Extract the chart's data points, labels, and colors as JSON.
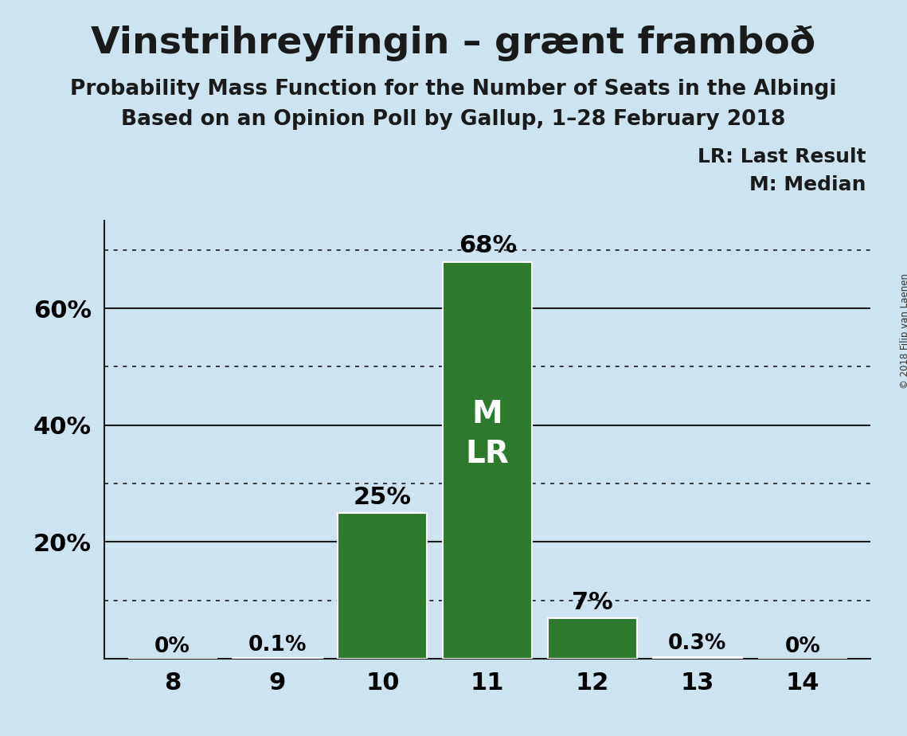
{
  "title": "Vinstrihreyfingin – grænt framboð",
  "subtitle1": "Probability Mass Function for the Number of Seats in the Albingi",
  "subtitle2": "Based on an Opinion Poll by Gallup, 1–28 February 2018",
  "copyright": "© 2018 Filip van Laenen",
  "seats": [
    8,
    9,
    10,
    11,
    12,
    13,
    14
  ],
  "probabilities": [
    0.0,
    0.001,
    0.25,
    0.68,
    0.07,
    0.003,
    0.0
  ],
  "prob_labels": [
    "0%",
    "0.1%",
    "25%",
    "68%",
    "7%",
    "0.3%",
    "0%"
  ],
  "bar_color": "#2d7a2d",
  "median_seat": 11,
  "last_result_seat": 11,
  "background_color": "#cde4f0",
  "ylim": [
    0,
    0.75
  ],
  "shown_yticks": [
    0.2,
    0.4,
    0.6
  ],
  "shown_ytick_labels": [
    "20%",
    "40%",
    "60%"
  ],
  "solid_yticks": [
    0.2,
    0.4,
    0.6
  ],
  "dotted_yticks": [
    0.1,
    0.3,
    0.5,
    0.7
  ],
  "annotation_lr": "LR: Last Result",
  "annotation_m": "M: Median",
  "label_inside_bar": "M\nLR",
  "label_inside_seat": 11,
  "grid_color": "#1a1a1a",
  "bar_edge_color": "white",
  "title_fontsize": 34,
  "subtitle_fontsize": 19,
  "tick_fontsize": 22,
  "label_fontsize_large": 22,
  "label_fontsize_small": 19,
  "inside_label_fontsize": 28
}
